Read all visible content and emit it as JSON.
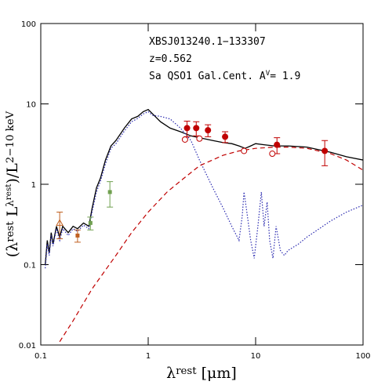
{
  "chart_data": {
    "type": "line",
    "annotation_lines": [
      "XBSJ013240.1−133307",
      "z=0.562"
    ],
    "annotation_extinction": [
      {
        "text": "Sa QSO1 Gal.Cent. A",
        "level": 0
      },
      {
        "text": "V",
        "level": 1
      },
      {
        "text": "= 1.9",
        "level": 0
      }
    ],
    "x_label": [
      {
        "text": "λ",
        "level": 0
      },
      {
        "text": "rest",
        "level": 1
      },
      {
        "text": " [μm]",
        "level": 0
      }
    ],
    "y_label": [
      {
        "text": "(λ",
        "level": 0
      },
      {
        "text": "rest",
        "level": 1
      },
      {
        "text": " L",
        "level": 0
      },
      {
        "text": "λ",
        "level": 1
      },
      {
        "text": "rest",
        "level": 2
      },
      {
        "text": ")/L",
        "level": 0
      },
      {
        "text": "2−10 keV",
        "level": 1
      }
    ],
    "xscale": "log",
    "yscale": "log",
    "xlim": [
      0.1,
      100
    ],
    "ylim": [
      0.01,
      100
    ],
    "xticks": [
      0.1,
      1,
      10,
      100
    ],
    "yticks": [
      0.01,
      0.1,
      1,
      10,
      100
    ],
    "series": [
      {
        "color": "#000000",
        "style": "solid",
        "x": [
          0.11,
          0.115,
          0.12,
          0.125,
          0.13,
          0.14,
          0.15,
          0.16,
          0.18,
          0.2,
          0.22,
          0.25,
          0.28,
          0.3,
          0.33,
          0.36,
          0.4,
          0.45,
          0.5,
          0.6,
          0.7,
          0.8,
          0.9,
          1.0,
          1.1,
          1.3,
          1.6,
          2,
          2.5,
          3,
          4,
          5,
          6,
          7,
          8,
          9,
          10,
          12,
          15,
          20,
          30,
          50,
          70,
          100
        ],
        "values": [
          0.1,
          0.2,
          0.14,
          0.25,
          0.18,
          0.3,
          0.22,
          0.3,
          0.25,
          0.3,
          0.28,
          0.33,
          0.3,
          0.5,
          0.9,
          1.2,
          2,
          3,
          3.5,
          5,
          6.5,
          7,
          8,
          8.5,
          7.5,
          6,
          5,
          4.5,
          4,
          3.8,
          3.5,
          3.3,
          3.2,
          3.0,
          2.8,
          3.0,
          3.2,
          3.1,
          3.0,
          3.0,
          2.9,
          2.5,
          2.2,
          2.0
        ]
      },
      {
        "color": "#2a2ab0",
        "style": "dotted",
        "x": [
          0.11,
          0.115,
          0.12,
          0.125,
          0.13,
          0.14,
          0.15,
          0.16,
          0.18,
          0.2,
          0.22,
          0.25,
          0.28,
          0.3,
          0.33,
          0.36,
          0.4,
          0.45,
          0.5,
          0.6,
          0.7,
          0.8,
          0.9,
          1.0,
          1.1,
          1.3,
          1.6,
          2,
          2.5,
          3,
          4,
          5,
          6,
          7,
          7.5,
          7.8,
          8.2,
          9,
          9.7,
          10.5,
          11.3,
          12,
          12.8,
          13.5,
          14.5,
          15.5,
          17,
          18.5,
          20,
          25,
          30,
          50,
          70,
          100
        ],
        "values": [
          0.09,
          0.18,
          0.13,
          0.23,
          0.17,
          0.28,
          0.2,
          0.28,
          0.23,
          0.28,
          0.26,
          0.31,
          0.28,
          0.45,
          0.8,
          1.1,
          1.8,
          2.8,
          3.2,
          4.6,
          6,
          6.6,
          7.5,
          8,
          7.2,
          7,
          6.5,
          5,
          3.5,
          2,
          0.9,
          0.5,
          0.3,
          0.2,
          0.4,
          0.8,
          0.5,
          0.2,
          0.12,
          0.3,
          0.8,
          0.3,
          0.6,
          0.2,
          0.12,
          0.3,
          0.15,
          0.13,
          0.15,
          0.18,
          0.22,
          0.35,
          0.45,
          0.55
        ]
      },
      {
        "color": "#c00000",
        "style": "dashed",
        "x": [
          0.15,
          0.2,
          0.3,
          0.5,
          0.7,
          1,
          1.5,
          2,
          3,
          5,
          7,
          10,
          15,
          20,
          30,
          50,
          70,
          100
        ],
        "values": [
          0.011,
          0.02,
          0.05,
          0.13,
          0.25,
          0.45,
          0.8,
          1.1,
          1.7,
          2.3,
          2.6,
          2.8,
          2.9,
          2.9,
          2.8,
          2.4,
          2.0,
          1.5
        ]
      }
    ],
    "points": [
      {
        "marker": "filled-circle",
        "color": "#c00000",
        "x": [
          2.3,
          2.8,
          3.6,
          5.2,
          15.8,
          44
        ],
        "values": [
          5.0,
          5.0,
          4.7,
          3.9,
          3.1,
          2.6
        ],
        "yerr": [
          1.1,
          1.0,
          0.8,
          0.6,
          0.7,
          0.9
        ]
      },
      {
        "marker": "open-circle",
        "color": "#c00000",
        "x": [
          2.2,
          3.0,
          7.8,
          14.3
        ],
        "values": [
          3.6,
          3.7,
          2.6,
          2.4
        ]
      },
      {
        "marker": "open-triangle",
        "color": "#c06020",
        "x": [
          0.15
        ],
        "values": [
          0.33
        ],
        "yerr": [
          0.12
        ]
      },
      {
        "marker": "filled-square",
        "color": "#c06020",
        "x": [
          0.22
        ],
        "values": [
          0.23
        ],
        "yerr": [
          0.04
        ]
      },
      {
        "marker": "filled-square",
        "color": "#70a050",
        "x": [
          0.29,
          0.44
        ],
        "values": [
          0.33,
          0.8
        ],
        "yerr": [
          0.06,
          0.28
        ]
      }
    ]
  }
}
